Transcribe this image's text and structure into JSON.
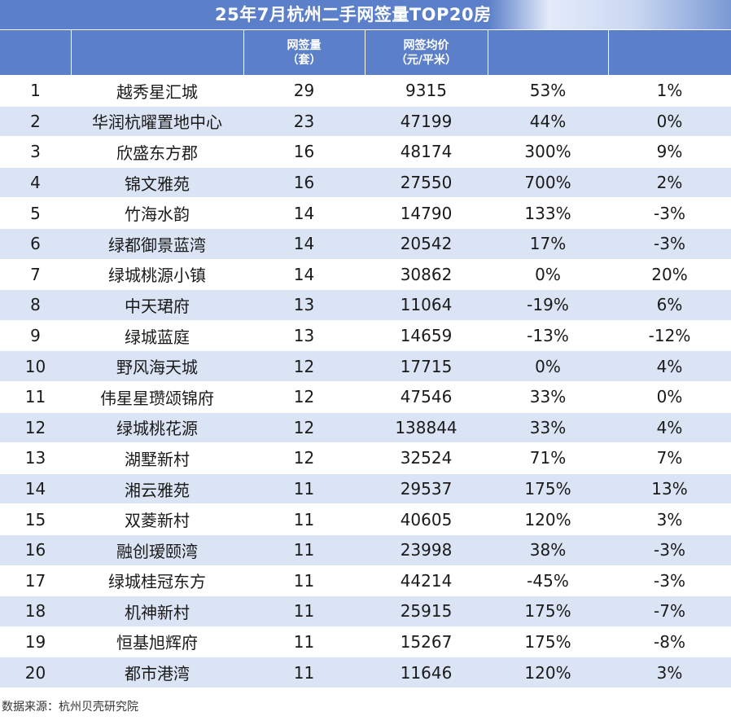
{
  "title": "25年7月杭州二手网签量TOP20房",
  "headers": {
    "h3_line1": "网签量",
    "h3_line2": "（套）",
    "h4_line1": "网签均价",
    "h4_line2": "（元/平米）"
  },
  "rows": [
    {
      "rank": "1",
      "name": "越秀星汇城",
      "count": "29",
      "price": "9315",
      "chg1": "53%",
      "chg2": "1%"
    },
    {
      "rank": "2",
      "name": "华润杭曜置地中心",
      "count": "23",
      "price": "47199",
      "chg1": "44%",
      "chg2": "0%"
    },
    {
      "rank": "3",
      "name": "欣盛东方郡",
      "count": "16",
      "price": "48174",
      "chg1": "300%",
      "chg2": "9%"
    },
    {
      "rank": "4",
      "name": "锦文雅苑",
      "count": "16",
      "price": "27550",
      "chg1": "700%",
      "chg2": "2%"
    },
    {
      "rank": "5",
      "name": "竹海水韵",
      "count": "14",
      "price": "14790",
      "chg1": "133%",
      "chg2": "-3%"
    },
    {
      "rank": "6",
      "name": "绿都御景蓝湾",
      "count": "14",
      "price": "20542",
      "chg1": "17%",
      "chg2": "-3%"
    },
    {
      "rank": "7",
      "name": "绿城桃源小镇",
      "count": "14",
      "price": "30862",
      "chg1": "0%",
      "chg2": "20%"
    },
    {
      "rank": "8",
      "name": "中天珺府",
      "count": "13",
      "price": "11064",
      "chg1": "-19%",
      "chg2": "6%"
    },
    {
      "rank": "9",
      "name": "绿城蓝庭",
      "count": "13",
      "price": "14659",
      "chg1": "-13%",
      "chg2": "-12%"
    },
    {
      "rank": "10",
      "name": "野风海天城",
      "count": "12",
      "price": "17715",
      "chg1": "0%",
      "chg2": "4%"
    },
    {
      "rank": "11",
      "name": "伟星星瓒颂锦府",
      "count": "12",
      "price": "47546",
      "chg1": "33%",
      "chg2": "0%"
    },
    {
      "rank": "12",
      "name": "绿城桃花源",
      "count": "12",
      "price": "138844",
      "chg1": "33%",
      "chg2": "4%"
    },
    {
      "rank": "13",
      "name": "湖墅新村",
      "count": "12",
      "price": "32524",
      "chg1": "71%",
      "chg2": "7%"
    },
    {
      "rank": "14",
      "name": "湘云雅苑",
      "count": "11",
      "price": "29537",
      "chg1": "175%",
      "chg2": "13%"
    },
    {
      "rank": "15",
      "name": "双菱新村",
      "count": "11",
      "price": "40605",
      "chg1": "120%",
      "chg2": "3%"
    },
    {
      "rank": "16",
      "name": "融创瑷颐湾",
      "count": "11",
      "price": "23998",
      "chg1": "38%",
      "chg2": "-3%"
    },
    {
      "rank": "17",
      "name": "绿城桂冠东方",
      "count": "11",
      "price": "44214",
      "chg1": "-45%",
      "chg2": "-3%"
    },
    {
      "rank": "18",
      "name": "机神新村",
      "count": "11",
      "price": "25915",
      "chg1": "175%",
      "chg2": "-7%"
    },
    {
      "rank": "19",
      "name": "恒基旭辉府",
      "count": "11",
      "price": "15267",
      "chg1": "175%",
      "chg2": "-8%"
    },
    {
      "rank": "20",
      "name": "都市港湾",
      "count": "11",
      "price": "11646",
      "chg1": "120%",
      "chg2": "3%"
    }
  ],
  "source": "数据来源：杭州贝壳研究院",
  "colors": {
    "header_bg": "#5b7fc8",
    "stripe_bg": "#dbe4f4"
  }
}
